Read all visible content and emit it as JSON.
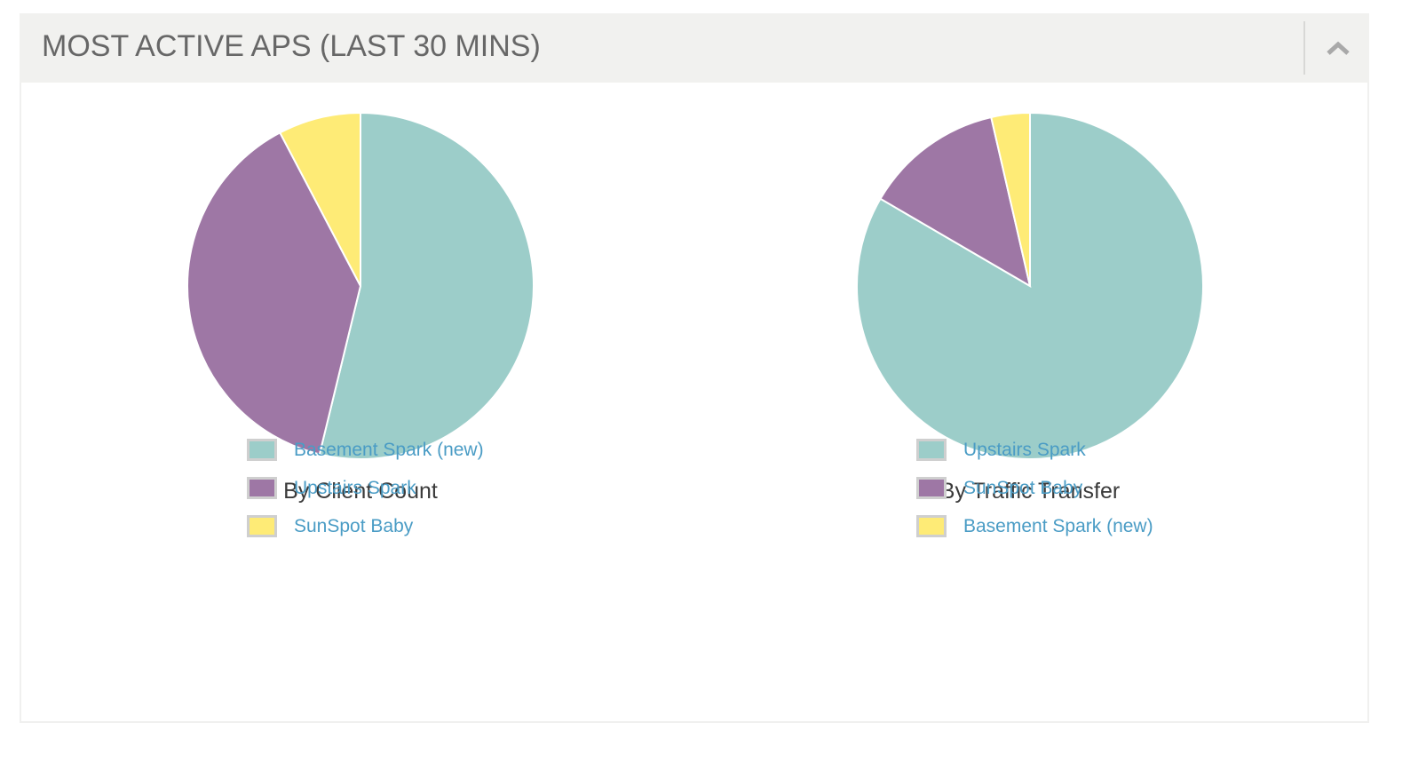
{
  "panel": {
    "title": "MOST ACTIVE APS (LAST 30 MINS)",
    "collapse_icon": "chevron-up-icon"
  },
  "colors": {
    "teal": "#9ccdc9",
    "purple": "#9e77a5",
    "yellow": "#feeb76",
    "legend_text": "#4a9cc5",
    "header_bg": "#f1f1ef"
  },
  "charts": [
    {
      "caption": "By Client Count",
      "legend": [
        {
          "label": "Basement Spark (new)",
          "color": "#9ccdc9"
        },
        {
          "label": "Upstairs Spark",
          "color": "#9e77a5"
        },
        {
          "label": "SunSpot Baby",
          "color": "#feeb76"
        }
      ]
    },
    {
      "caption": "By Traffic Transfer",
      "legend": [
        {
          "label": "Upstairs Spark",
          "color": "#9ccdc9"
        },
        {
          "label": "SunSpot Baby",
          "color": "#9e77a5"
        },
        {
          "label": "Basement Spark (new)",
          "color": "#feeb76"
        }
      ]
    }
  ],
  "chart_data": [
    {
      "type": "pie",
      "title": "By Client Count",
      "categories": [
        "Basement Spark (new)",
        "Upstairs Spark",
        "SunSpot Baby"
      ],
      "values": [
        53.8,
        38.5,
        7.7
      ],
      "units": "percent (estimated)",
      "colors": [
        "#9ccdc9",
        "#9e77a5",
        "#feeb76"
      ],
      "legend_position": "bottom"
    },
    {
      "type": "pie",
      "title": "By Traffic Transfer",
      "categories": [
        "Upstairs Spark",
        "SunSpot Baby",
        "Basement Spark (new)"
      ],
      "values": [
        83.4,
        13.0,
        3.6
      ],
      "units": "percent (estimated)",
      "colors": [
        "#9ccdc9",
        "#9e77a5",
        "#feeb76"
      ],
      "legend_position": "bottom"
    }
  ]
}
